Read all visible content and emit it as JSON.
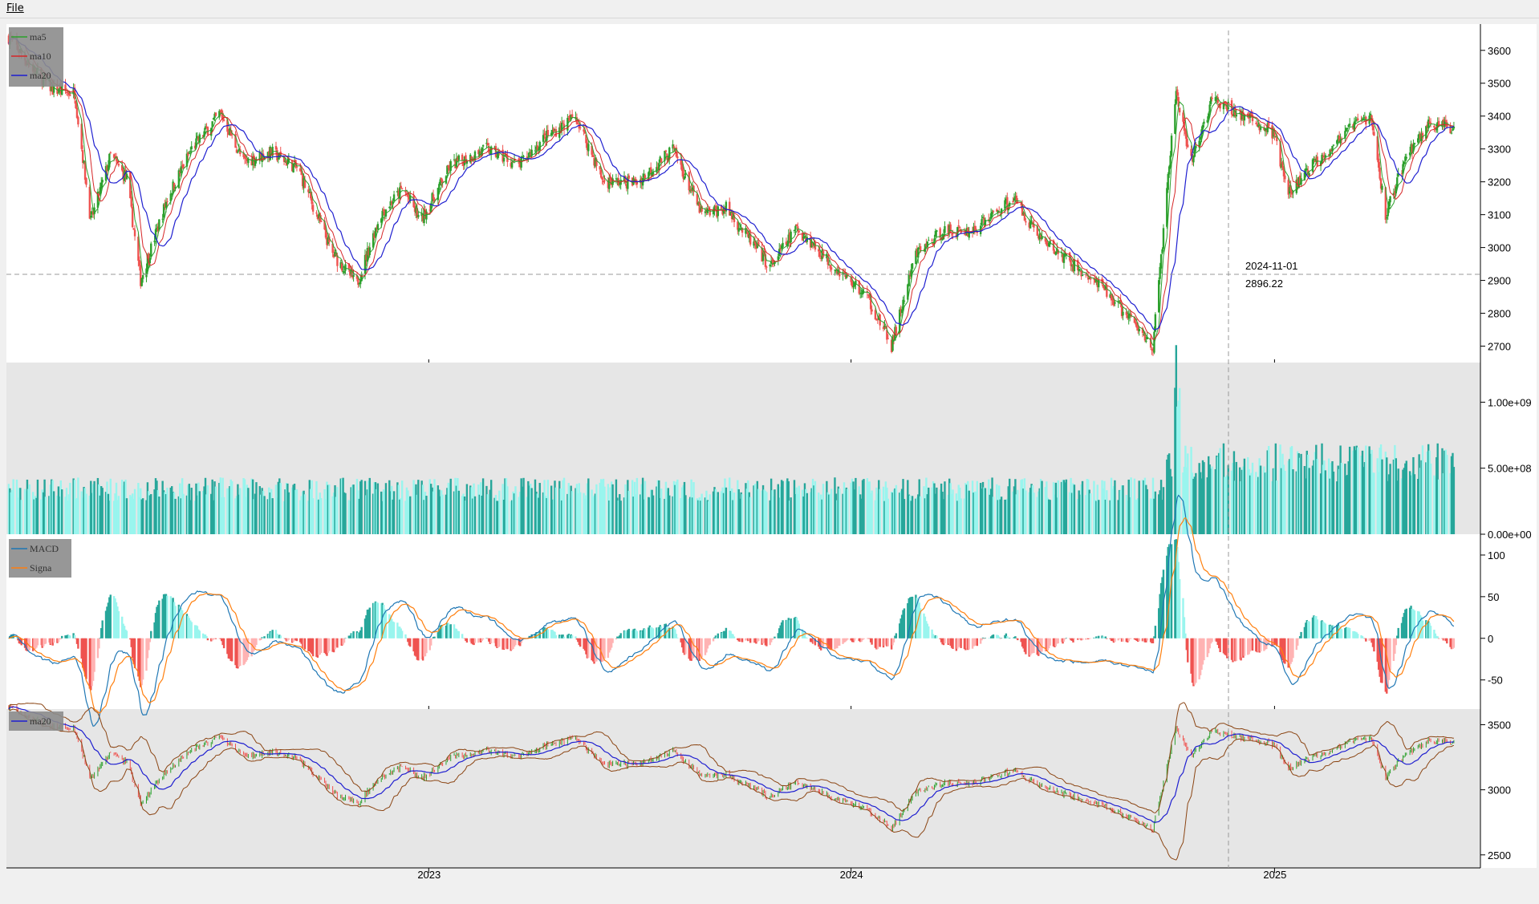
{
  "menu": {
    "file_label": "File"
  },
  "crosshair": {
    "date": "2024-11-01",
    "price": "2896.22"
  },
  "colors": {
    "up": "#26a69a",
    "down": "#ef5350",
    "up_light": "#99f5ee",
    "down_light": "#ffb3b3",
    "ma5": "#2ca02c",
    "ma10": "#d62728",
    "ma20": "#1f1fd0",
    "macd": "#1f77b4",
    "signal": "#ff7f0e",
    "boll": "#8b4513"
  },
  "chart_data": [
    {
      "type": "candlestick",
      "panel": "price",
      "legend": [
        "ma5",
        "ma10",
        "ma20"
      ],
      "xticks": [],
      "yticks": [
        2700,
        2800,
        2900,
        3000,
        3100,
        3200,
        3300,
        3400,
        3500,
        3600
      ],
      "ylim": [
        2650,
        3680
      ],
      "series_shape_close": [
        [
          "2022-01-04",
          3640
        ],
        [
          "2022-01-20",
          3560
        ],
        [
          "2022-02-10",
          3480
        ],
        [
          "2022-03-01",
          3470
        ],
        [
          "2022-03-15",
          3080
        ],
        [
          "2022-04-01",
          3280
        ],
        [
          "2022-04-15",
          3210
        ],
        [
          "2022-04-27",
          2900
        ],
        [
          "2022-05-20",
          3150
        ],
        [
          "2022-06-10",
          3300
        ],
        [
          "2022-07-05",
          3410
        ],
        [
          "2022-07-25",
          3260
        ],
        [
          "2022-08-18",
          3290
        ],
        [
          "2022-09-10",
          3240
        ],
        [
          "2022-10-10",
          2980
        ],
        [
          "2022-10-31",
          2890
        ],
        [
          "2022-11-20",
          3100
        ],
        [
          "2022-12-10",
          3180
        ],
        [
          "2022-12-25",
          3080
        ],
        [
          "2023-01-20",
          3250
        ],
        [
          "2023-02-20",
          3300
        ],
        [
          "2023-03-20",
          3250
        ],
        [
          "2023-04-10",
          3330
        ],
        [
          "2023-05-08",
          3400
        ],
        [
          "2023-06-01",
          3200
        ],
        [
          "2023-07-01",
          3200
        ],
        [
          "2023-07-31",
          3300
        ],
        [
          "2023-08-25",
          3100
        ],
        [
          "2023-09-15",
          3120
        ],
        [
          "2023-10-23",
          2940
        ],
        [
          "2023-11-15",
          3060
        ],
        [
          "2023-12-15",
          2950
        ],
        [
          "2024-01-15",
          2850
        ],
        [
          "2024-02-05",
          2700
        ],
        [
          "2024-02-26",
          2980
        ],
        [
          "2024-03-20",
          3050
        ],
        [
          "2024-04-15",
          3050
        ],
        [
          "2024-05-20",
          3150
        ],
        [
          "2024-06-15",
          3020
        ],
        [
          "2024-07-10",
          2950
        ],
        [
          "2024-08-10",
          2860
        ],
        [
          "2024-09-18",
          2700
        ],
        [
          "2024-10-08",
          3480
        ],
        [
          "2024-10-20",
          3250
        ],
        [
          "2024-11-08",
          3450
        ],
        [
          "2024-12-05",
          3400
        ],
        [
          "2024-12-31",
          3350
        ],
        [
          "2025-01-13",
          3160
        ],
        [
          "2025-02-05",
          3260
        ],
        [
          "2025-03-10",
          3370
        ],
        [
          "2025-03-25",
          3400
        ],
        [
          "2025-04-07",
          3100
        ],
        [
          "2025-04-25",
          3280
        ],
        [
          "2025-05-15",
          3380
        ],
        [
          "2025-06-03",
          3360
        ]
      ]
    },
    {
      "type": "bar",
      "panel": "volume",
      "yticks": [
        0,
        500000000,
        1000000000
      ],
      "ytick_labels": [
        "0.00e+00",
        "5.00e+08",
        "1.00e+09"
      ],
      "ylim": [
        0,
        1300000000
      ]
    },
    {
      "type": "line",
      "panel": "macd",
      "legend": [
        "MACD",
        "Signa"
      ],
      "yticks": [
        -50,
        0,
        50,
        100
      ],
      "ylim": [
        -85,
        125
      ]
    },
    {
      "type": "candlestick",
      "panel": "bollinger",
      "legend": [
        "ma20"
      ],
      "xticks": [
        "2023",
        "2024",
        "2025"
      ],
      "yticks": [
        2500,
        3000,
        3500
      ],
      "ylim": [
        2400,
        3620
      ]
    }
  ]
}
